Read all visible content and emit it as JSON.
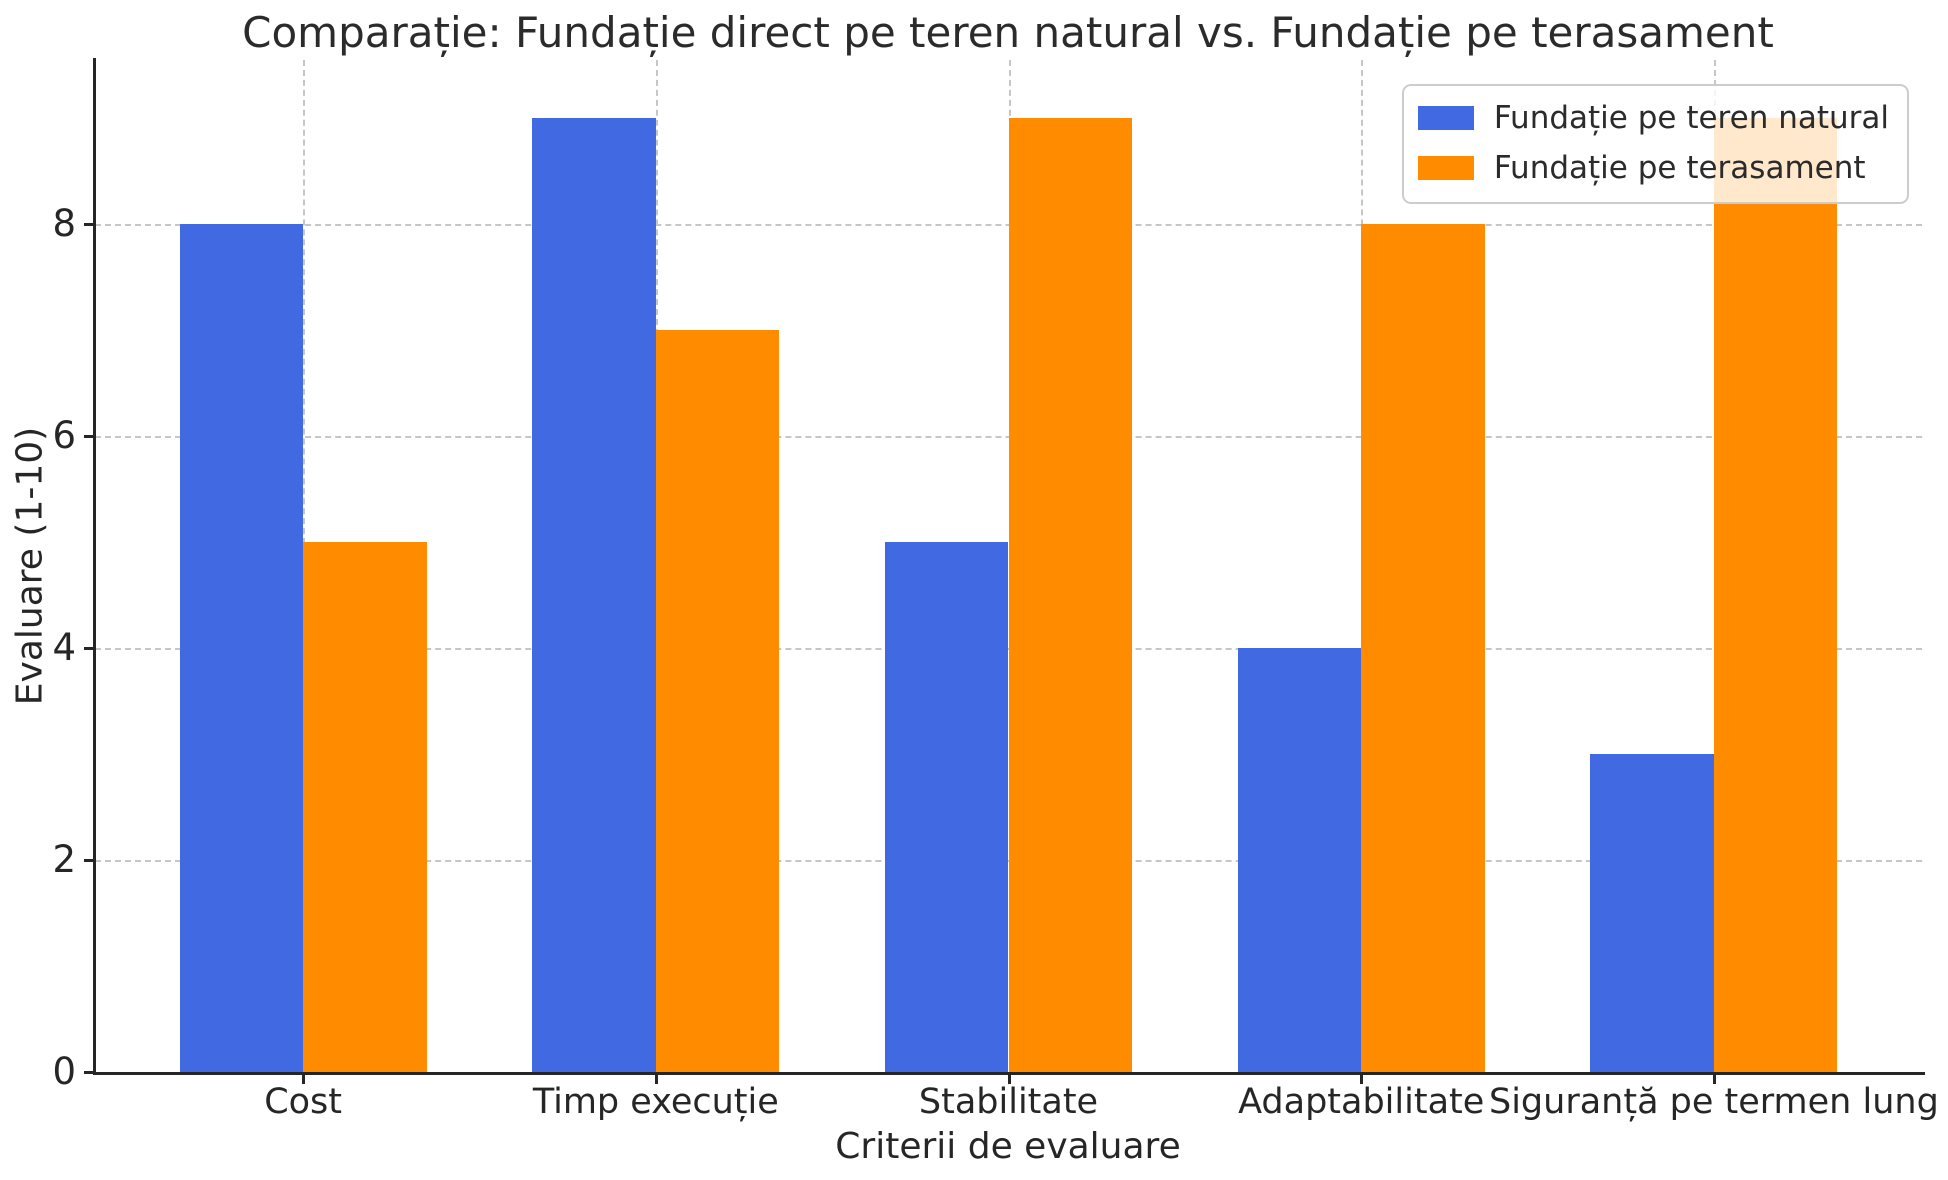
{
  "chart_data": {
    "type": "bar",
    "title": "Comparație: Fundație direct pe teren natural vs. Fundație pe terasament",
    "xlabel": "Criterii de evaluare",
    "ylabel": "Evaluare (1-10)",
    "categories": [
      "Cost",
      "Timp execuție",
      "Stabilitate",
      "Adaptabilitate",
      "Siguranță pe termen lung"
    ],
    "series": [
      {
        "name": "Fundație pe teren natural",
        "color": "#4169E1",
        "values": [
          8,
          9,
          5,
          4,
          3
        ]
      },
      {
        "name": "Fundație pe terasament",
        "color": "#FF8C00",
        "values": [
          5,
          7,
          9,
          8,
          9
        ]
      }
    ],
    "ylim": [
      0,
      9.55
    ],
    "yticks": [
      0,
      2,
      4,
      6,
      8
    ],
    "grid": true,
    "grid_style": "dashed",
    "legend_position": "upper right",
    "colors": {
      "grid": "#c6c6c6",
      "spine": "#262626",
      "text": "#262626",
      "background": "#ffffff"
    }
  }
}
